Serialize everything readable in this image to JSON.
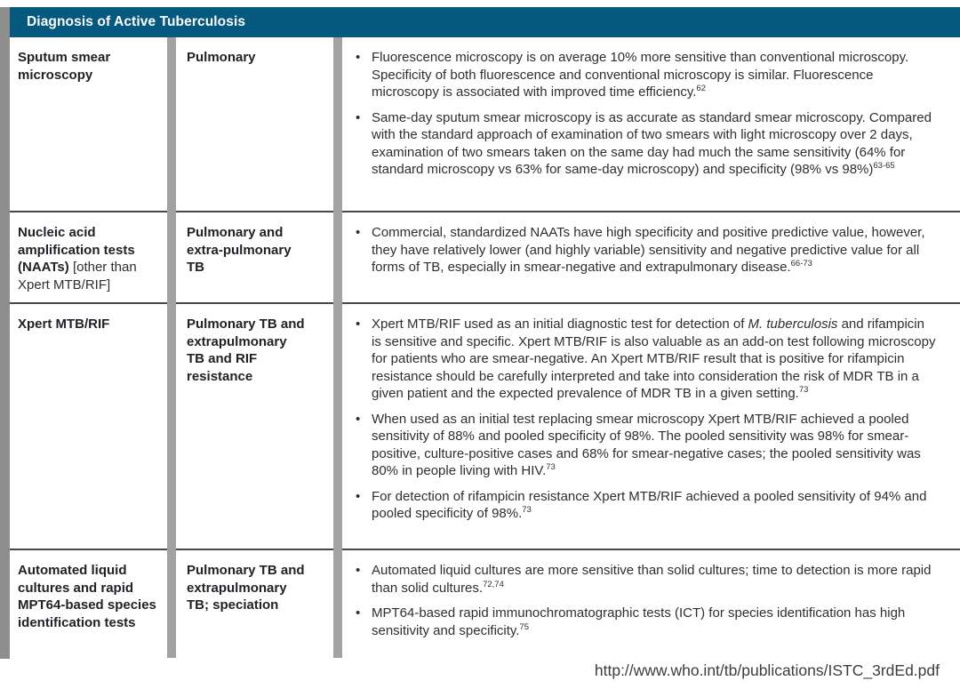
{
  "header": {
    "title": "Diagnosis of Active Tuberculosis"
  },
  "colors": {
    "header_bg": "#05587e",
    "divider_gray": "#a2a2a2",
    "row_line": "#46464c"
  },
  "table": {
    "rows": [
      {
        "test_bold": "Sputum smear microscopy",
        "test_regular": "",
        "scope": "Pulmonary",
        "bullets": [
          {
            "segments": [
              {
                "text": "Fluorescence microscopy is on average 10% more sensitive than conventional microscopy. Specificity of both fluorescence and conventional microscopy is similar. Fluorescence microscopy is associated with improved time efficiency.",
                "italic": false
              }
            ],
            "ref": "62"
          },
          {
            "segments": [
              {
                "text": "Same-day sputum smear microscopy is as accurate as standard smear microscopy. Compared with the standard approach of examination of two smears with light microscopy over 2 days, examination of two smears taken on the same day had much the same sensitivity (64% for standard microscopy vs 63% for same-day microscopy) and specificity (98% vs 98%)",
                "italic": false
              }
            ],
            "ref": "63-65"
          }
        ]
      },
      {
        "test_bold": "Nucleic acid amplification tests (NAATs)",
        "test_regular": "[other than Xpert MTB/RIF]",
        "scope": "Pulmonary and extra-pulmonary TB",
        "bullets": [
          {
            "segments": [
              {
                "text": "Commercial, standardized NAATs have high specificity and positive predictive value, however, they have relatively lower (and highly variable) sensitivity and negative predictive value for all forms of TB, especially in smear-negative and extrapulmonary disease.",
                "italic": false
              }
            ],
            "ref": "66-73"
          }
        ]
      },
      {
        "test_bold": "Xpert MTB/RIF",
        "test_regular": "",
        "scope": "Pulmonary TB and extrapulmonary TB and RIF resistance",
        "bullets": [
          {
            "segments": [
              {
                "text": "Xpert MTB/RIF used as an initial diagnostic test for detection of ",
                "italic": false
              },
              {
                "text": "M. tuberculosis",
                "italic": true
              },
              {
                "text": " and rifampicin is sensitive and specific. Xpert MTB/RIF is also valuable as an add-on test following microscopy for patients who are smear-negative. An Xpert MTB/RIF result that is positive for rifampicin resistance should be carefully interpreted and take into consideration the risk of MDR TB in a given patient and the expected prevalence of MDR TB in a given setting.",
                "italic": false
              }
            ],
            "ref": "73"
          },
          {
            "segments": [
              {
                "text": "When used as an initial test replacing smear microscopy Xpert MTB/RIF achieved a pooled sensitivity of 88% and pooled specificity of 98%. The pooled sensitivity was 98% for smear-positive, culture-positive cases and 68% for smear-negative cases; the pooled sensitivity was 80% in people living with HIV.",
                "italic": false
              }
            ],
            "ref": "73"
          },
          {
            "segments": [
              {
                "text": "For detection of rifampicin resistance Xpert MTB/RIF achieved a pooled sensitivity of 94% and pooled specificity of 98%.",
                "italic": false
              }
            ],
            "ref": "73"
          }
        ]
      },
      {
        "test_bold": "Automated liquid cultures and rapid MPT64-based species identification tests",
        "test_regular": "",
        "scope": "Pulmonary TB and extrapulmonary TB; speciation",
        "bullets": [
          {
            "segments": [
              {
                "text": "Automated liquid cultures are more sensitive than solid cultures; time to detection is more rapid than solid cultures.",
                "italic": false
              }
            ],
            "ref": "72,74"
          },
          {
            "segments": [
              {
                "text": "MPT64-based rapid immunochromatographic tests (ICT) for species identification has high sensitivity and specificity.",
                "italic": false
              }
            ],
            "ref": "75"
          }
        ]
      }
    ]
  },
  "footer": {
    "url": "http://www.who.int/tb/publications/ISTC_3rdEd.pdf"
  }
}
